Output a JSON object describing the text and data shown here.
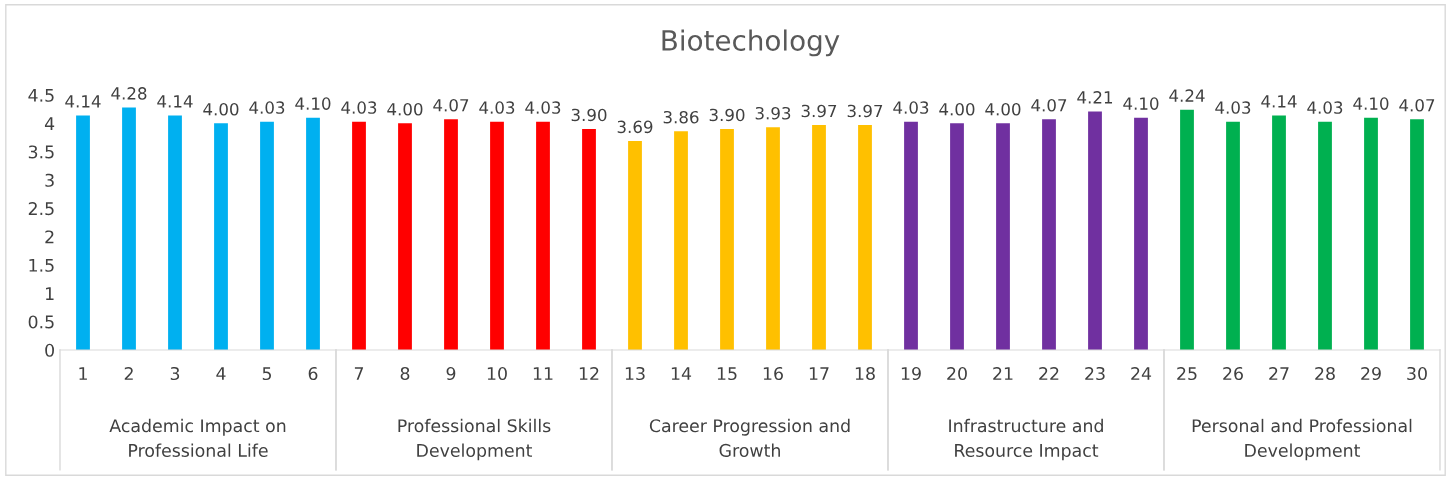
{
  "chart_data": {
    "type": "bar",
    "title": "Biotechology",
    "categories": [
      "1",
      "2",
      "3",
      "4",
      "5",
      "6",
      "7",
      "8",
      "9",
      "10",
      "11",
      "12",
      "13",
      "14",
      "15",
      "16",
      "17",
      "18",
      "19",
      "20",
      "21",
      "22",
      "23",
      "24",
      "25",
      "26",
      "27",
      "28",
      "29",
      "30"
    ],
    "series": [
      {
        "color": "#00b0f0",
        "values": [
          4.14,
          4.28,
          4.14,
          4.0,
          4.03,
          4.1,
          null,
          null,
          null,
          null,
          null,
          null,
          null,
          null,
          null,
          null,
          null,
          null,
          null,
          null,
          null,
          null,
          null,
          null,
          null,
          null,
          null,
          null,
          null,
          null
        ],
        "value_labels": [
          "4.14",
          "4.28",
          "4.14",
          "4.00",
          "4.03",
          "4.10",
          null,
          null,
          null,
          null,
          null,
          null,
          null,
          null,
          null,
          null,
          null,
          null,
          null,
          null,
          null,
          null,
          null,
          null,
          null,
          null,
          null,
          null,
          null,
          null
        ]
      },
      {
        "color": "#ff0000",
        "values": [
          null,
          null,
          null,
          null,
          null,
          null,
          4.03,
          4.0,
          4.07,
          4.03,
          4.03,
          3.9,
          null,
          null,
          null,
          null,
          null,
          null,
          null,
          null,
          null,
          null,
          null,
          null,
          null,
          null,
          null,
          null,
          null,
          null
        ],
        "value_labels": [
          null,
          null,
          null,
          null,
          null,
          null,
          "4.03",
          "4.00",
          "4.07",
          "4.03",
          "4.03",
          "3.90",
          null,
          null,
          null,
          null,
          null,
          null,
          null,
          null,
          null,
          null,
          null,
          null,
          null,
          null,
          null,
          null,
          null,
          null
        ]
      },
      {
        "color": "#ffc000",
        "values": [
          null,
          null,
          null,
          null,
          null,
          null,
          null,
          null,
          null,
          null,
          null,
          null,
          3.69,
          3.86,
          3.9,
          3.93,
          3.97,
          3.97,
          null,
          null,
          null,
          null,
          null,
          null,
          null,
          null,
          null,
          null,
          null,
          null
        ],
        "value_labels": [
          null,
          null,
          null,
          null,
          null,
          null,
          null,
          null,
          null,
          null,
          null,
          null,
          "3.69",
          "3.86",
          "3.90",
          "3.93",
          "3.97",
          "3.97",
          null,
          null,
          null,
          null,
          null,
          null,
          null,
          null,
          null,
          null,
          null,
          null
        ]
      },
      {
        "color": "#7030a0",
        "values": [
          null,
          null,
          null,
          null,
          null,
          null,
          null,
          null,
          null,
          null,
          null,
          null,
          null,
          null,
          null,
          null,
          null,
          null,
          4.03,
          4.0,
          4.0,
          4.07,
          4.21,
          4.1,
          null,
          null,
          null,
          null,
          null,
          null
        ],
        "value_labels": [
          null,
          null,
          null,
          null,
          null,
          null,
          null,
          null,
          null,
          null,
          null,
          null,
          null,
          null,
          null,
          null,
          null,
          null,
          "4.03",
          "4.00",
          "4.00",
          "4.07",
          "4.21",
          "4.10",
          null,
          null,
          null,
          null,
          null,
          null
        ]
      },
      {
        "color": "#00b050",
        "values": [
          null,
          null,
          null,
          null,
          null,
          null,
          null,
          null,
          null,
          null,
          null,
          null,
          null,
          null,
          null,
          null,
          null,
          null,
          null,
          null,
          null,
          null,
          null,
          null,
          4.24,
          4.03,
          4.14,
          4.03,
          4.1,
          4.07
        ],
        "value_labels": [
          null,
          null,
          null,
          null,
          null,
          null,
          null,
          null,
          null,
          null,
          null,
          null,
          null,
          null,
          null,
          null,
          null,
          null,
          null,
          null,
          null,
          null,
          null,
          null,
          "4.24",
          "4.03",
          "4.14",
          "4.03",
          "4.10",
          "4.07"
        ]
      }
    ],
    "annotations": [
      "Academic Impact on\nProfessional Life",
      "Professional Skills\nDevelopment",
      "Career Progression and\nGrowth",
      "Infrastructure and\nResource Impact",
      "Personal and Professional\nDevelopment"
    ],
    "ylim": [
      0,
      4.5
    ],
    "yticks": [
      0,
      0.5,
      1,
      1.5,
      2,
      2.5,
      3,
      3.5,
      4,
      4.5
    ],
    "grid": false,
    "legend": false
  }
}
